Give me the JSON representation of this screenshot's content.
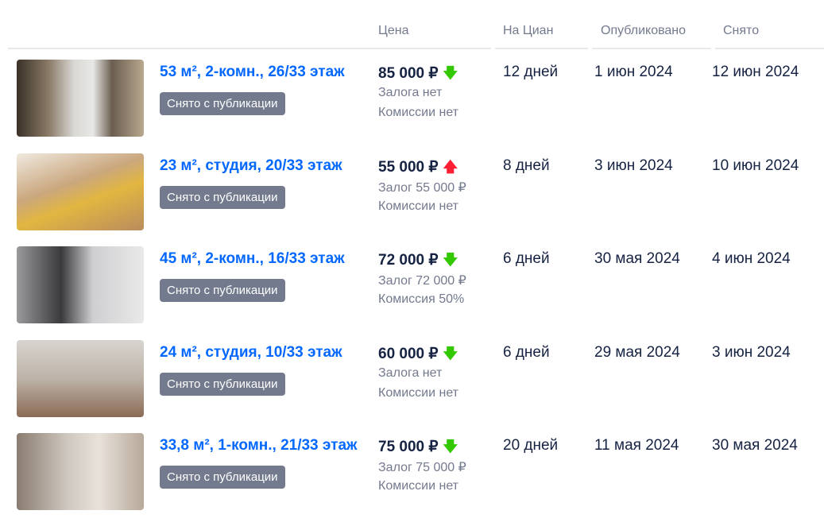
{
  "headers": {
    "price": "Цена",
    "days": "На Циан",
    "published": "Опубликовано",
    "removed": "Снято"
  },
  "colors": {
    "link": "#0468ff",
    "down": "#34c800",
    "up": "#ff1f34",
    "badge": "#737a8e"
  },
  "rows": [
    {
      "title": "53 м², 2-комн., 26/33 этаж",
      "badge": "Снято с публикации",
      "price": "85 000 ₽",
      "trend": "down",
      "deposit": "Залога нет",
      "commission": "Комиссии нет",
      "days": "12 дней",
      "published": "1 июн 2024",
      "removed": "12 июн 2024"
    },
    {
      "title": "23 м², студия, 20/33 этаж",
      "badge": "Снято с публикации",
      "price": "55 000 ₽",
      "trend": "up",
      "deposit": "Залог 55 000 ₽",
      "commission": "Комиссии нет",
      "days": "8 дней",
      "published": "3 июн 2024",
      "removed": "10 июн 2024"
    },
    {
      "title": "45 м², 2-комн., 16/33 этаж",
      "badge": "Снято с публикации",
      "price": "72 000 ₽",
      "trend": "down",
      "deposit": "Залог 72 000 ₽",
      "commission": "Комиссия 50%",
      "days": "6 дней",
      "published": "30 мая 2024",
      "removed": "4 июн 2024"
    },
    {
      "title": "24 м², студия, 10/33 этаж",
      "badge": "Снято с публикации",
      "price": "60 000 ₽",
      "trend": "down",
      "deposit": "Залога нет",
      "commission": "Комиссии нет",
      "days": "6 дней",
      "published": "29 мая 2024",
      "removed": "3 июн 2024"
    },
    {
      "title": "33,8 м², 1-комн., 21/33 этаж",
      "badge": "Снято с публикации",
      "price": "75 000 ₽",
      "trend": "down",
      "deposit": "Залог 75 000 ₽",
      "commission": "Комиссии нет",
      "days": "20 дней",
      "published": "11 мая 2024",
      "removed": "30 мая 2024"
    }
  ]
}
